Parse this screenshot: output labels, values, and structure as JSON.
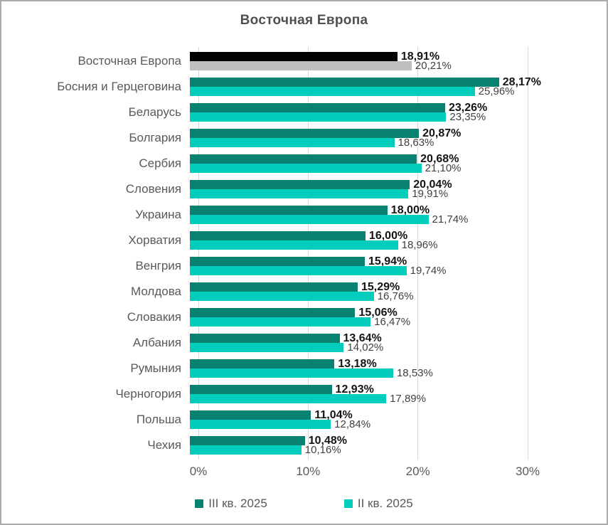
{
  "title": "Восточная Европа",
  "chart_data": {
    "type": "bar",
    "orientation": "horizontal",
    "title": "Восточная Европа",
    "xlabel": "",
    "ylabel": "",
    "xlim": [
      0,
      30
    ],
    "x_ticks": [
      "0%",
      "10%",
      "20%",
      "30%"
    ],
    "grid": "vertical",
    "legend_position": "bottom",
    "categories": [
      "Восточная Европа",
      "Босния и Герцеговина",
      "Беларусь",
      "Болгария",
      "Сербия",
      "Словения",
      "Украина",
      "Хорватия",
      "Венгрия",
      "Молдова",
      "Словакия",
      "Албания",
      "Румыния",
      "Черногория",
      "Польша",
      "Чехия"
    ],
    "series": [
      {
        "name": "III кв. 2025",
        "values": [
          18.91,
          28.17,
          23.26,
          20.87,
          20.68,
          20.04,
          18.0,
          16.0,
          15.94,
          15.29,
          15.06,
          13.64,
          13.18,
          12.93,
          11.04,
          10.48
        ],
        "labels": [
          "18,91%",
          "28,17%",
          "23,26%",
          "20,87%",
          "20,68%",
          "20,04%",
          "18,00%",
          "16,00%",
          "15,94%",
          "15,29%",
          "15,06%",
          "13,64%",
          "13,18%",
          "12,93%",
          "11,04%",
          "10,48%"
        ]
      },
      {
        "name": "II кв. 2025",
        "values": [
          20.21,
          25.96,
          23.35,
          18.63,
          21.1,
          19.91,
          21.74,
          18.96,
          19.74,
          16.76,
          16.47,
          14.02,
          18.53,
          17.89,
          12.84,
          10.16
        ],
        "labels": [
          "20,21%",
          "25,96%",
          "23,35%",
          "18,63%",
          "21,10%",
          "19,91%",
          "21,74%",
          "18,96%",
          "19,74%",
          "16,76%",
          "16,47%",
          "14,02%",
          "18,53%",
          "17,89%",
          "12,84%",
          "10,16%"
        ]
      }
    ],
    "colors": {
      "series": [
        "#088170",
        "#02CCBC"
      ],
      "region_highlight": [
        "#000000",
        "#BFBFBF"
      ],
      "gridline": "#D9D9D9",
      "axis_text": "#595959"
    },
    "highlight_category": "Восточная Европа"
  },
  "legend": [
    {
      "label": "III кв. 2025",
      "color": "#088170"
    },
    {
      "label": "II кв. 2025",
      "color": "#02CCBC"
    }
  ]
}
